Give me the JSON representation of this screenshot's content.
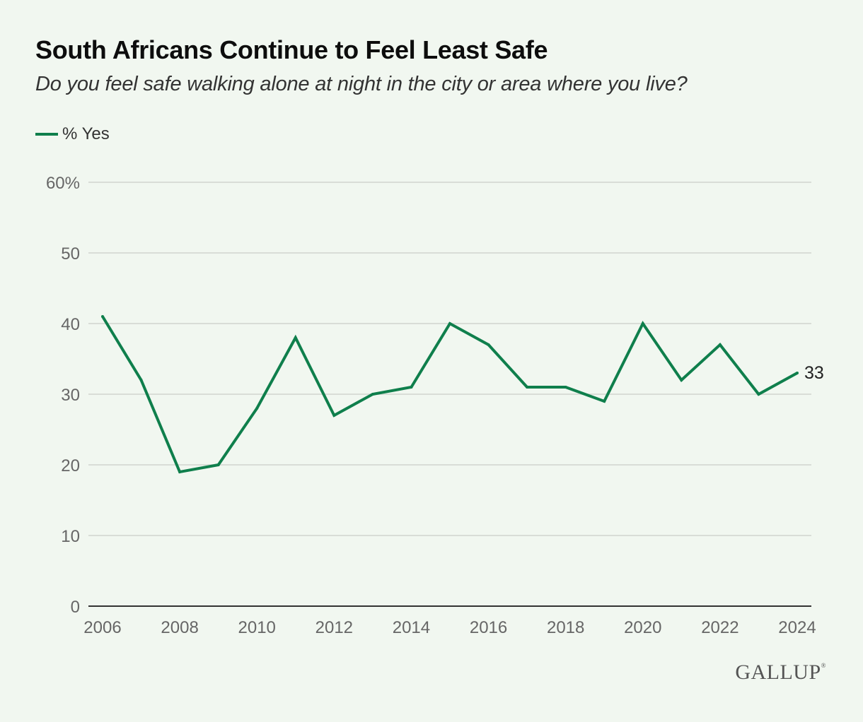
{
  "chart_data": {
    "type": "line",
    "title": "South Africans Continue to Feel Least Safe",
    "subtitle": "Do you feel safe walking alone at night in the city or area where you live?",
    "xlabel": "",
    "ylabel": "",
    "x": [
      2006,
      2007,
      2008,
      2009,
      2010,
      2011,
      2012,
      2013,
      2014,
      2015,
      2016,
      2017,
      2018,
      2019,
      2020,
      2021,
      2022,
      2023,
      2024
    ],
    "series": [
      {
        "name": "% Yes",
        "color": "#0f7f4c",
        "values": [
          41,
          32,
          19,
          20,
          28,
          38,
          27,
          30,
          31,
          40,
          37,
          31,
          31,
          29,
          40,
          32,
          37,
          30,
          33
        ]
      }
    ],
    "ylim": [
      0,
      60
    ],
    "xlim": [
      2006,
      2024
    ],
    "y_ticks": [
      0,
      10,
      20,
      30,
      40,
      50,
      60
    ],
    "y_tick_labels": [
      "0",
      "10",
      "20",
      "30",
      "40",
      "50",
      "60%"
    ],
    "x_ticks": [
      2006,
      2008,
      2010,
      2012,
      2014,
      2016,
      2018,
      2020,
      2022,
      2024
    ],
    "x_tick_labels": [
      "2006",
      "2008",
      "2010",
      "2012",
      "2014",
      "2016",
      "2018",
      "2020",
      "2022",
      "2024"
    ],
    "grid": true,
    "legend": "top-left",
    "end_label": "33"
  },
  "branding": {
    "logo_text": "GALLUP",
    "logo_mark": "®"
  }
}
